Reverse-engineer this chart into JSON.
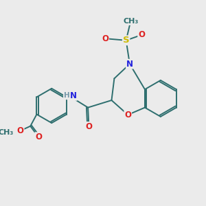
{
  "background_color": "#ebebeb",
  "fig_size": [
    3.0,
    3.0
  ],
  "dpi": 100,
  "atom_colors": {
    "N": "#2222dd",
    "O": "#dd2222",
    "S": "#ccbb00",
    "C": "#2d6e6e",
    "H": "#7799aa"
  },
  "bond_color": "#2d6e6e",
  "bond_width": 1.4,
  "font_size_atom": 8.5,
  "font_size_small": 7.5
}
